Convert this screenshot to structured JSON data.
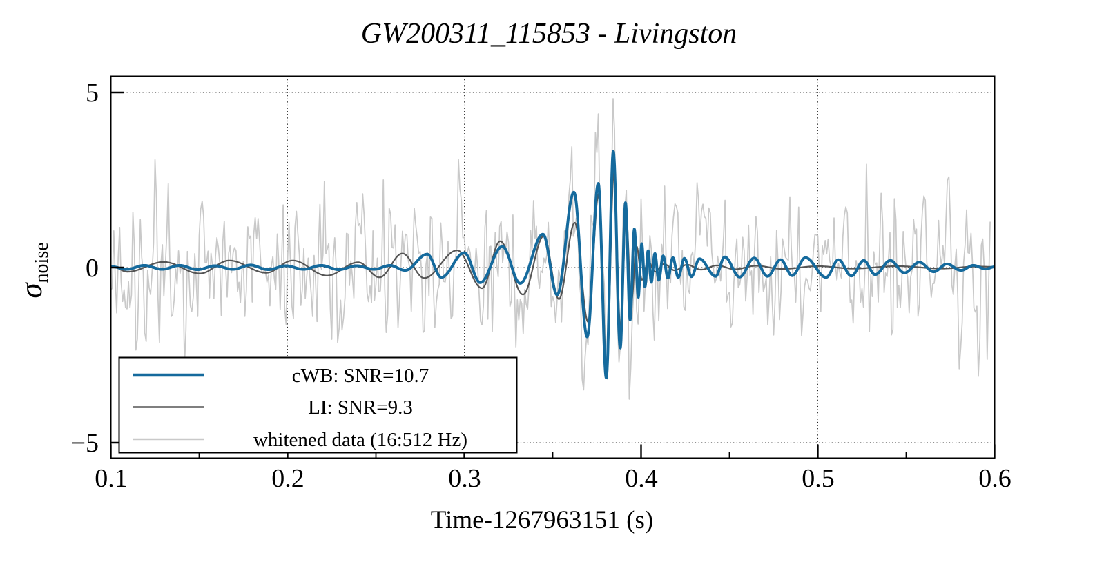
{
  "chart_data": {
    "type": "line",
    "title": "GW200311_115853 - Livingston",
    "xlabel": "Time-1267963151 (s)",
    "ylabel_symbol": "σ",
    "ylabel_subscript": "noise",
    "xlim": [
      0.1,
      0.6
    ],
    "ylim": [
      -5.45,
      5.45
    ],
    "x_major_ticks": [
      0.1,
      0.2,
      0.3,
      0.4,
      0.5,
      0.6
    ],
    "x_tick_labels": [
      "0.1",
      "0.2",
      "0.3",
      "0.4",
      "0.5",
      "0.6"
    ],
    "x_minor_ticks": [
      0.15,
      0.25,
      0.35,
      0.45,
      0.55
    ],
    "y_major_ticks": [
      5,
      0,
      -5
    ],
    "y_tick_labels": [
      "5",
      "0",
      "−5"
    ],
    "grid": {
      "x_lines": [
        0.2,
        0.3,
        0.4,
        0.5
      ],
      "y_lines": [
        5,
        0,
        -5
      ],
      "style": "dotted"
    },
    "colors": {
      "cwb": "#156a9d",
      "li": "#555555",
      "noise": "#c9c9c9",
      "frame": "#000000"
    },
    "legend": {
      "position": "bottom-left",
      "entries": [
        {
          "label": "cWB: SNR=10.7",
          "color": "#156a9d",
          "line_width": 4.5
        },
        {
          "label": "LI: SNR=9.3",
          "color": "#555555",
          "line_width": 2.5
        },
        {
          "label": "whitened data (16:512 Hz)",
          "color": "#c9c9c9",
          "line_width": 2.5
        }
      ]
    },
    "series": [
      {
        "name": "cWB: SNR=10.7",
        "kind": "extrema_waveform",
        "color": "#156a9d",
        "width": 4,
        "points": [
          [
            0.1,
            0.03
          ],
          [
            0.109,
            -0.05
          ],
          [
            0.119,
            0.06
          ],
          [
            0.129,
            -0.05
          ],
          [
            0.139,
            0.06
          ],
          [
            0.149,
            -0.06
          ],
          [
            0.159,
            0.05
          ],
          [
            0.169,
            -0.05
          ],
          [
            0.179,
            0.07
          ],
          [
            0.189,
            -0.06
          ],
          [
            0.199,
            0.05
          ],
          [
            0.209,
            -0.05
          ],
          [
            0.219,
            0.06
          ],
          [
            0.229,
            -0.06
          ],
          [
            0.239,
            0.05
          ],
          [
            0.249,
            -0.05
          ],
          [
            0.258,
            0.06
          ],
          [
            0.2665,
            -0.08
          ],
          [
            0.279,
            0.38
          ],
          [
            0.287,
            -0.28
          ],
          [
            0.3,
            0.42
          ],
          [
            0.309,
            -0.43
          ],
          [
            0.3215,
            0.6
          ],
          [
            0.3316,
            -0.45
          ],
          [
            0.3445,
            0.95
          ],
          [
            0.3525,
            -0.78
          ],
          [
            0.362,
            2.15
          ],
          [
            0.3695,
            -1.98
          ],
          [
            0.3758,
            2.4
          ],
          [
            0.3803,
            -3.15
          ],
          [
            0.3843,
            3.32
          ],
          [
            0.3882,
            -2.3
          ],
          [
            0.3912,
            1.85
          ],
          [
            0.3938,
            -1.5
          ],
          [
            0.3962,
            1.1
          ],
          [
            0.3984,
            -0.85
          ],
          [
            0.4004,
            0.68
          ],
          [
            0.4022,
            -0.55
          ],
          [
            0.404,
            0.48
          ],
          [
            0.4058,
            -0.42
          ],
          [
            0.4078,
            0.4
          ],
          [
            0.41,
            -0.36
          ],
          [
            0.4125,
            0.33
          ],
          [
            0.4152,
            -0.3
          ],
          [
            0.418,
            0.28
          ],
          [
            0.421,
            -0.28
          ],
          [
            0.4245,
            0.26
          ],
          [
            0.4285,
            -0.26
          ],
          [
            0.433,
            0.25
          ],
          [
            0.4422,
            -0.25
          ],
          [
            0.4473,
            0.3
          ],
          [
            0.4558,
            -0.27
          ],
          [
            0.464,
            0.27
          ],
          [
            0.4715,
            -0.25
          ],
          [
            0.479,
            0.22
          ],
          [
            0.4855,
            -0.23
          ],
          [
            0.493,
            0.28
          ],
          [
            0.5047,
            -0.28
          ],
          [
            0.5117,
            0.22
          ],
          [
            0.519,
            -0.24
          ],
          [
            0.526,
            0.2
          ],
          [
            0.5324,
            -0.2
          ],
          [
            0.541,
            0.2
          ],
          [
            0.549,
            -0.15
          ],
          [
            0.5574,
            0.15
          ],
          [
            0.5656,
            -0.12
          ],
          [
            0.573,
            0.1
          ],
          [
            0.581,
            -0.08
          ],
          [
            0.588,
            0.06
          ],
          [
            0.595,
            -0.04
          ],
          [
            0.6,
            0.02
          ]
        ]
      },
      {
        "name": "LI: SNR=9.3",
        "kind": "extrema_waveform",
        "color": "#555555",
        "width": 2.2,
        "points": [
          [
            0.1,
            0.05
          ],
          [
            0.1094,
            -0.12
          ],
          [
            0.13,
            0.16
          ],
          [
            0.1504,
            -0.17
          ],
          [
            0.167,
            0.2
          ],
          [
            0.188,
            -0.15
          ],
          [
            0.2029,
            0.2
          ],
          [
            0.2223,
            -0.23
          ],
          [
            0.24,
            0.15
          ],
          [
            0.252,
            -0.28
          ],
          [
            0.265,
            0.4
          ],
          [
            0.2773,
            -0.3
          ],
          [
            0.296,
            0.49
          ],
          [
            0.31,
            -0.59
          ],
          [
            0.3203,
            0.75
          ],
          [
            0.3332,
            -0.77
          ],
          [
            0.345,
            0.9
          ],
          [
            0.3535,
            -0.9
          ],
          [
            0.3625,
            1.28
          ],
          [
            0.37,
            -1.55
          ],
          [
            0.376,
            2.1
          ],
          [
            0.3806,
            -2.85
          ],
          [
            0.3846,
            2.7
          ],
          [
            0.3885,
            -1.9
          ],
          [
            0.3915,
            1.55
          ],
          [
            0.3945,
            -0.95
          ],
          [
            0.3975,
            0.6
          ],
          [
            0.4005,
            -0.35
          ],
          [
            0.404,
            0.18
          ],
          [
            0.408,
            -0.12
          ],
          [
            0.413,
            0.1
          ],
          [
            0.419,
            -0.08
          ],
          [
            0.426,
            0.08
          ],
          [
            0.434,
            -0.06
          ],
          [
            0.443,
            0.06
          ],
          [
            0.453,
            -0.05
          ],
          [
            0.465,
            0.05
          ],
          [
            0.48,
            -0.04
          ],
          [
            0.5,
            0.04
          ],
          [
            0.52,
            -0.03
          ],
          [
            0.545,
            0.04
          ],
          [
            0.57,
            -0.03
          ],
          [
            0.59,
            0.03
          ],
          [
            0.6,
            0.02
          ]
        ]
      },
      {
        "name": "whitened data (16:512 Hz)",
        "kind": "band_limited_noise",
        "color": "#c9c9c9",
        "width": 1.7,
        "seed": 20200311,
        "sample_rate_hz": 1200,
        "t_start": 0.1,
        "t_end": 0.5975,
        "sigma": 1.02,
        "signal_component": "cWB: SNR=10.7",
        "signal_gain": 1.05,
        "band": "16:512 Hz"
      }
    ]
  }
}
